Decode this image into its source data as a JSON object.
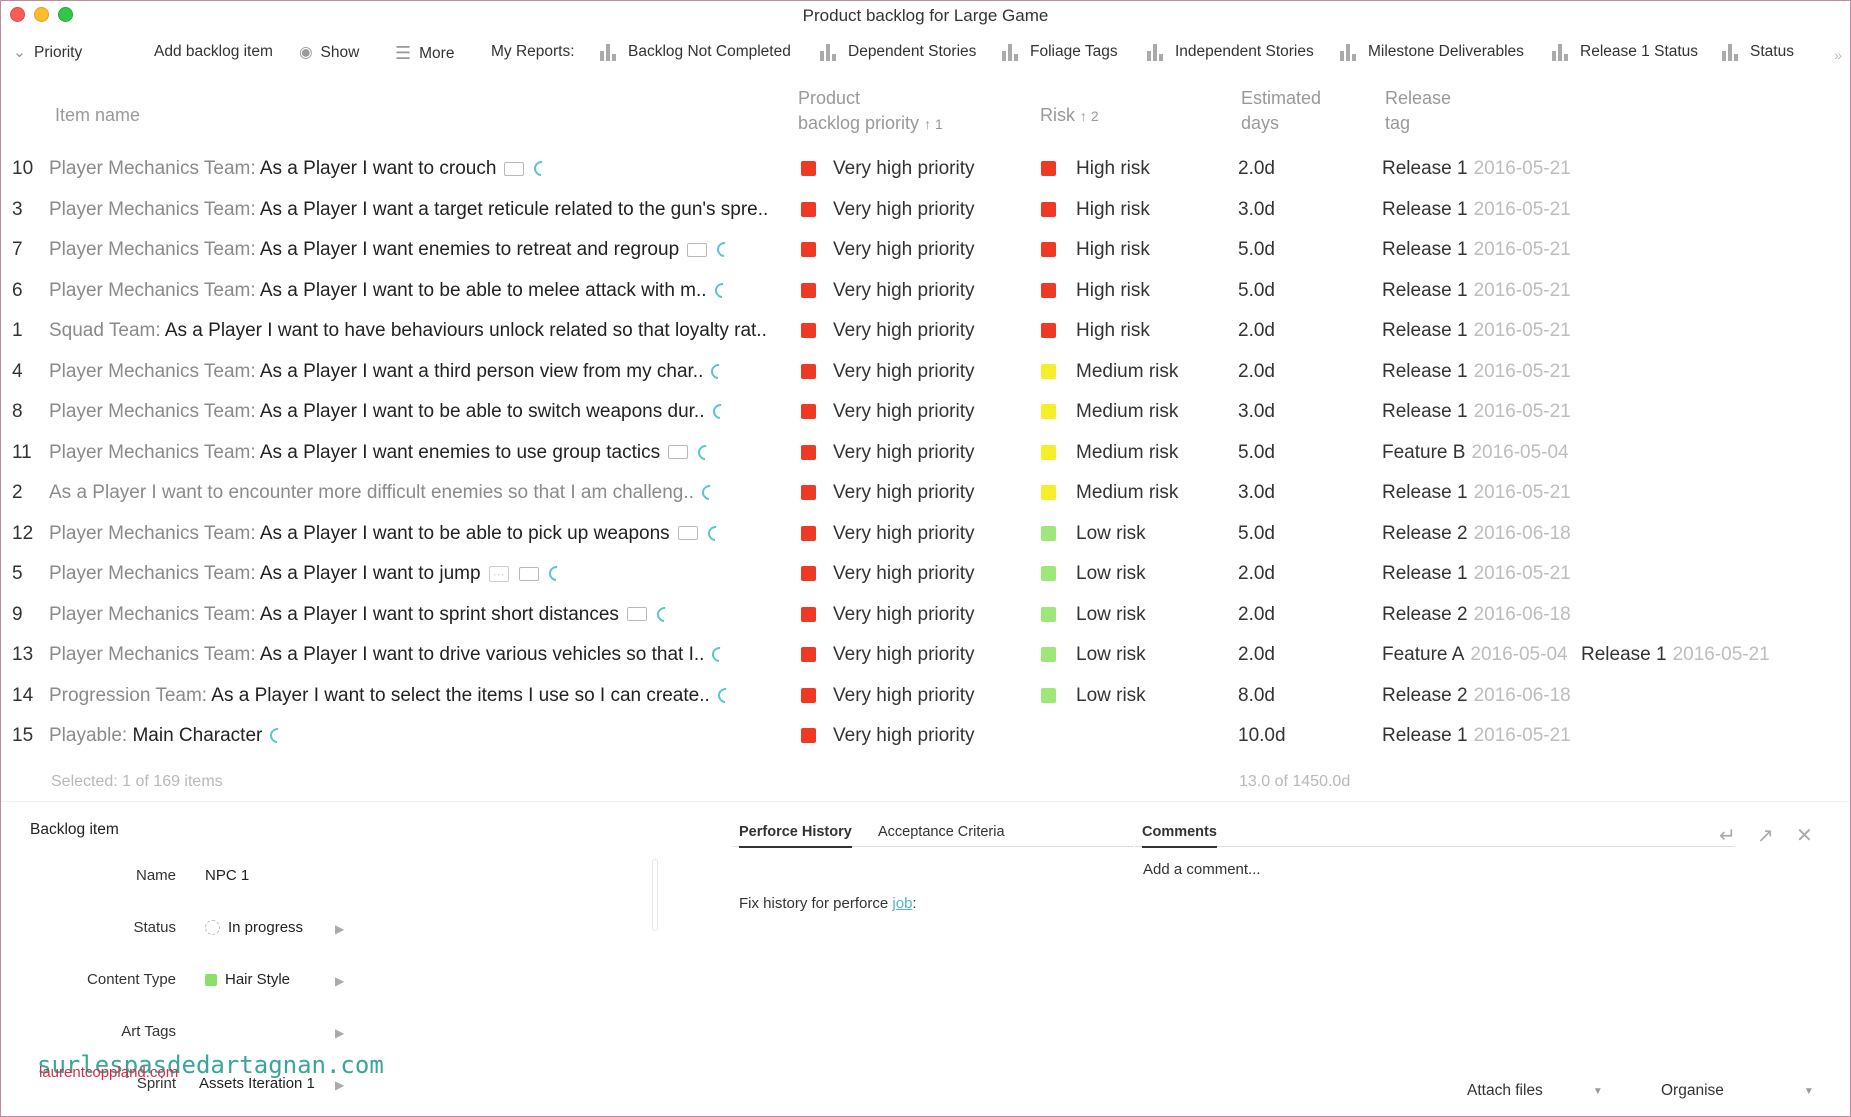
{
  "window": {
    "title": "Product backlog for Large Game"
  },
  "toolbar": {
    "priority": "Priority",
    "add": "Add backlog item",
    "show": "Show",
    "more": "More",
    "reports_label": "My Reports:",
    "reports": [
      "Backlog Not Completed",
      "Dependent Stories",
      "Foliage Tags",
      "Independent Stories",
      "Milestone Deliverables",
      "Release 1 Status",
      "Status"
    ]
  },
  "columns": {
    "item_name": "Item name",
    "priority_l1": "Product",
    "priority_l2": "backlog priority",
    "priority_sort": "1",
    "risk": "Risk",
    "risk_sort": "2",
    "days_l1": "Estimated",
    "days_l2": "days",
    "release_l1": "Release",
    "release_l2": "tag"
  },
  "rows": [
    {
      "num": "10",
      "team": "Player Mechanics Team:",
      "story": " As a Player I want to crouch",
      "priority": "Very high priority",
      "risk": "High risk",
      "risk_color": "#ee3a24",
      "days": "2.0d",
      "release": "Release 1",
      "date": "2016-05-21"
    },
    {
      "num": "3",
      "team": "Player Mechanics Team:",
      "story": " As a Player I want a target reticule related to the gun's spre..",
      "priority": "Very high priority",
      "risk": "High risk",
      "risk_color": "#ee3a24",
      "days": "3.0d",
      "release": "Release 1",
      "date": "2016-05-21"
    },
    {
      "num": "7",
      "team": "Player Mechanics Team:",
      "story": " As a Player I want enemies to retreat and regroup",
      "priority": "Very high priority",
      "risk": "High risk",
      "risk_color": "#ee3a24",
      "days": "5.0d",
      "release": "Release 1",
      "date": "2016-05-21"
    },
    {
      "num": "6",
      "team": "Player Mechanics Team:",
      "story": " As a Player I want to be able to melee attack with m..",
      "priority": "Very high priority",
      "risk": "High risk",
      "risk_color": "#ee3a24",
      "days": "5.0d",
      "release": "Release 1",
      "date": "2016-05-21"
    },
    {
      "num": "1",
      "team": "Squad Team:",
      "story": " As a Player I want to have behaviours unlock related so that loyalty rat..",
      "priority": "Very high priority",
      "risk": "High risk",
      "risk_color": "#ee3a24",
      "days": "2.0d",
      "release": "Release 1",
      "date": "2016-05-21"
    },
    {
      "num": "4",
      "team": "Player Mechanics Team:",
      "story": " As a Player I want a third person view from my char..",
      "priority": "Very high priority",
      "risk": "Medium risk",
      "risk_color": "#f7ee2a",
      "days": "2.0d",
      "release": "Release 1",
      "date": "2016-05-21"
    },
    {
      "num": "8",
      "team": "Player Mechanics Team:",
      "story": " As a Player I want to be able to switch weapons dur..",
      "priority": "Very high priority",
      "risk": "Medium risk",
      "risk_color": "#f7ee2a",
      "days": "3.0d",
      "release": "Release 1",
      "date": "2016-05-21"
    },
    {
      "num": "11",
      "team": "Player Mechanics Team:",
      "story": " As a Player I want enemies to use group tactics",
      "priority": "Very high priority",
      "risk": "Medium risk",
      "risk_color": "#f7ee2a",
      "days": "5.0d",
      "release": "Feature B",
      "date": "2016-05-04"
    },
    {
      "num": "2",
      "team": "",
      "story": "As a Player I want to encounter more difficult enemies so that I am challeng..",
      "priority": "Very high priority",
      "risk": "Medium risk",
      "risk_color": "#f7ee2a",
      "days": "3.0d",
      "release": "Release 1",
      "date": "2016-05-21"
    },
    {
      "num": "12",
      "team": "Player Mechanics Team:",
      "story": " As a Player I want to be able to pick up weapons",
      "priority": "Very high priority",
      "risk": "Low risk",
      "risk_color": "#9ee87a",
      "days": "5.0d",
      "release": "Release 2",
      "date": "2016-06-18"
    },
    {
      "num": "5",
      "team": "Player Mechanics Team:",
      "story": " As a Player I want to jump",
      "priority": "Very high priority",
      "risk": "Low risk",
      "risk_color": "#9ee87a",
      "days": "2.0d",
      "release": "Release 1",
      "date": "2016-05-21"
    },
    {
      "num": "9",
      "team": "Player Mechanics Team:",
      "story": " As a Player I want to sprint short distances",
      "priority": "Very high priority",
      "risk": "Low risk",
      "risk_color": "#9ee87a",
      "days": "2.0d",
      "release": "Release 2",
      "date": "2016-06-18"
    },
    {
      "num": "13",
      "team": "Player Mechanics Team:",
      "story": " As a Player I want to drive various vehicles so that I..",
      "priority": "Very high priority",
      "risk": "Low risk",
      "risk_color": "#9ee87a",
      "days": "2.0d",
      "release": "Feature A",
      "date": "2016-05-04",
      "release2": "Release 1",
      "date2": "2016-05-21"
    },
    {
      "num": "14",
      "team": "Progression Team:",
      "story": " As a Player I want to select the items I use so I can create..",
      "priority": "Very high priority",
      "risk": "Low risk",
      "risk_color": "#9ee87a",
      "days": "8.0d",
      "release": "Release 2",
      "date": "2016-06-18"
    },
    {
      "num": "15",
      "team": "Playable:",
      "story": " Main Character",
      "priority": "Very high priority",
      "risk": "",
      "risk_color": "",
      "days": "10.0d",
      "release": "Release 1",
      "date": "2016-05-21"
    }
  ],
  "status": {
    "selected": "Selected: 1 of 169 items",
    "days_total": "13.0 of 1450.0d"
  },
  "detail": {
    "title": "Backlog item",
    "name_label": "Name",
    "name_value": "NPC 1",
    "status_label": "Status",
    "status_value": "In progress",
    "content_label": "Content Type",
    "content_value": "Hair Style",
    "art_label": "Art Tags",
    "sprint_label": "Sprint",
    "sprint_value": "Assets Iteration 1"
  },
  "tabs": {
    "perforce": "Perforce History",
    "acceptance": "Acceptance Criteria",
    "comments": "Comments"
  },
  "history": {
    "text": "Fix history for perforce ",
    "link": "job",
    "suffix": ":"
  },
  "comments": {
    "placeholder": "Add a comment..."
  },
  "footer": {
    "attach": "Attach files",
    "organise": "Organise"
  },
  "watermark": {
    "line1": "surlespasdedartagnan.com",
    "line2": "laurentcoppland.com"
  }
}
